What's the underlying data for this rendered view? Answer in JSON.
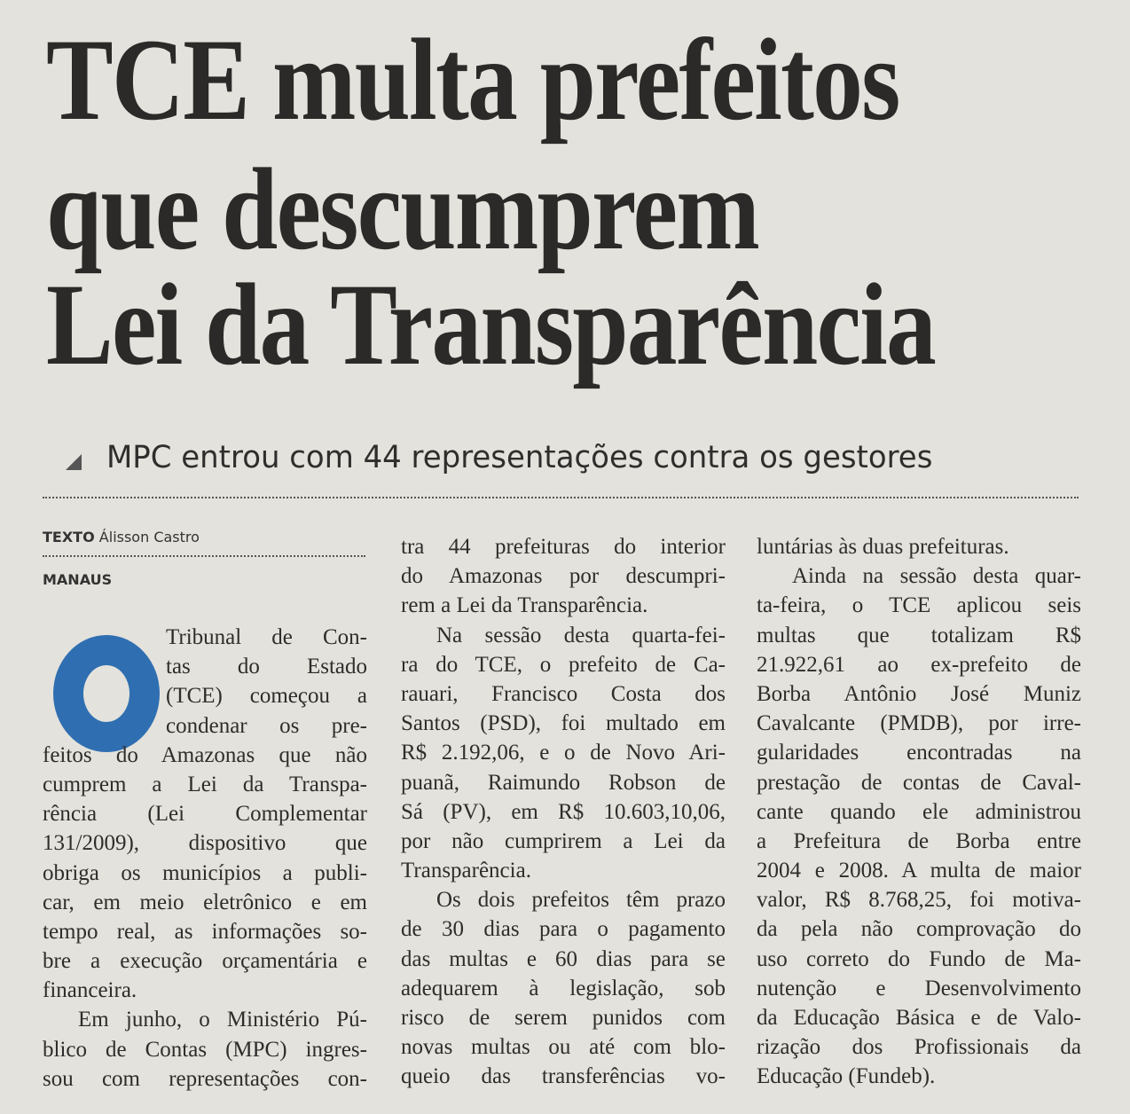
{
  "headline": [
    "TCE multa prefeitos",
    "que descumprem",
    "Lei da Transparência"
  ],
  "subhead": "MPC entrou com 44 representações contra os gestores",
  "byline": {
    "label": "TEXTO",
    "author": "Álisson Castro"
  },
  "city": "MANAUS",
  "dropcap_letter": "O",
  "colors": {
    "dropcap": "#2f6fb1",
    "paper": "#e4e2dc",
    "text": "#2e2d2b"
  },
  "columns": [
    {
      "paragraphs": [
        {
          "lines": [
            "Tribunal de Con-",
            "tas do Estado",
            "(TCE) começou a",
            "condenar os pre-",
            "feitos do Amazonas que não",
            "cumprem a Lei da Transpa-",
            "rência (Lei Complementar",
            "131/2009), dispositivo que",
            "obriga os municípios a publi-",
            "car, em meio eletrônico e em",
            "tempo real, as informações so-",
            "bre a execução orçamentária e",
            "financeira."
          ]
        },
        {
          "lines": [
            "Em junho, o Ministério Pú-",
            "blico de Contas (MPC) ingres-",
            "sou com representações con-"
          ],
          "continues": true
        }
      ]
    },
    {
      "paragraphs": [
        {
          "lines": [
            "tra 44 prefeituras do interior",
            "do Amazonas por descumpri-",
            "rem a Lei da Transparência."
          ],
          "continued": true
        },
        {
          "lines": [
            "Na sessão desta quarta-fei-",
            "ra do TCE, o prefeito de Ca-",
            "rauari, Francisco Costa dos",
            "Santos (PSD), foi multado em",
            "R$ 2.192,06, e o de Novo Ari-",
            "puanã, Raimundo Robson de",
            "Sá (PV), em R$ 10.603,10,06,",
            "por não cumprirem a Lei da",
            "Transparência."
          ]
        },
        {
          "lines": [
            "Os dois prefeitos têm prazo",
            "de 30 dias para o pagamento",
            "das multas e 60 dias para se",
            "adequarem à legislação, sob",
            "risco de serem punidos com",
            "novas multas ou até com blo-",
            "queio das transferências vo-"
          ],
          "continues": true
        }
      ]
    },
    {
      "paragraphs": [
        {
          "lines": [
            "luntárias às duas prefeituras."
          ],
          "continued": true
        },
        {
          "lines": [
            "Ainda na sessão desta quar-",
            "ta-feira, o TCE aplicou seis",
            "multas que totalizam R$",
            "21.922,61 ao ex-prefeito de",
            "Borba Antônio José Muniz",
            "Cavalcante (PMDB), por irre-",
            "gularidades encontradas na",
            "prestação de contas de Caval-",
            "cante quando ele administrou",
            "a Prefeitura de Borba entre",
            "2004 e 2008. A multa de maior",
            "valor, R$ 8.768,25, foi motiva-",
            "da pela não comprovação do",
            "uso correto do Fundo de Ma-",
            "nutenção e Desenvolvimento",
            "da Educação Básica e de Valo-",
            "rização dos Profissionais da",
            "Educação (Fundeb)."
          ]
        }
      ]
    }
  ]
}
